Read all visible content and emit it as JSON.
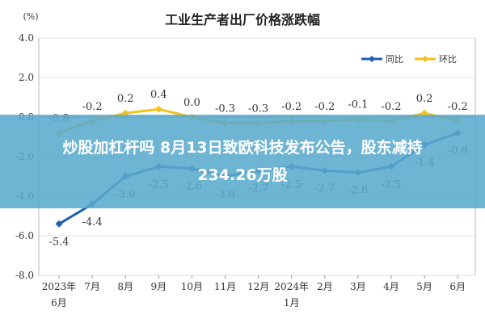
{
  "banner": {
    "line1": "炒股加杠杆吗 8月13日致欧科技发布公告，股东减持",
    "line2": "234.26万股"
  },
  "chart_data": {
    "type": "line",
    "title": "工业生产者出厂价格涨跌幅",
    "unit_label": "(%)",
    "categories": [
      [
        "2023年",
        "6月"
      ],
      [
        "7月"
      ],
      [
        "8月"
      ],
      [
        "9月"
      ],
      [
        "10月"
      ],
      [
        "11月"
      ],
      [
        "12月"
      ],
      [
        "2024年",
        "1月"
      ],
      [
        "2月"
      ],
      [
        "3月"
      ],
      [
        "4月"
      ],
      [
        "5月"
      ],
      [
        "6月"
      ]
    ],
    "ylim": [
      -8.0,
      4.0
    ],
    "yticks": [
      "4.0",
      "2.0",
      "0.0",
      "-2.0",
      "-4.0",
      "-6.0",
      "-8.0"
    ],
    "grid": true,
    "legend_position": "top-right",
    "series": [
      {
        "name": "同比",
        "color": "#1f5fb0",
        "values": [
          -5.4,
          -4.4,
          -3.0,
          -2.5,
          -2.6,
          -3.0,
          -2.7,
          -2.5,
          -2.7,
          -2.8,
          -2.5,
          -1.4,
          -0.8
        ],
        "labels": [
          "-5.4",
          "-4.4",
          "-3.0",
          "-2.5",
          "-2.6",
          "-3.0",
          "-2.7",
          "-2.5",
          "-2.7",
          "-2.8",
          "-2.5",
          "-1.4",
          "-0.8"
        ]
      },
      {
        "name": "环比",
        "color": "#f5c21b",
        "values": [
          -0.8,
          -0.2,
          0.2,
          0.4,
          0.0,
          -0.3,
          -0.3,
          -0.2,
          -0.2,
          -0.1,
          -0.2,
          0.2,
          -0.2
        ],
        "labels": [
          "-0.8",
          "-0.2",
          "0.2",
          "0.4",
          "0.0",
          "-0.3",
          "-0.3",
          "-0.2",
          "-0.2",
          "-0.1",
          "-0.2",
          "0.2",
          "-0.2"
        ]
      }
    ]
  }
}
